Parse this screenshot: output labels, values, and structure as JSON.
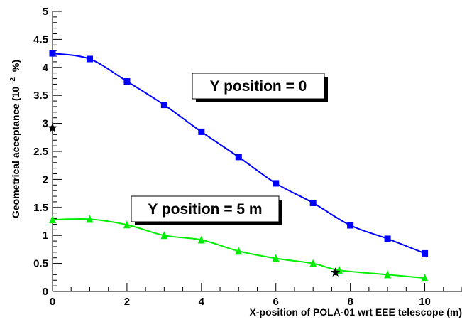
{
  "chart_data": {
    "type": "line",
    "title": "",
    "xlabel": "X-position of POLA-01 wrt EEE telescope (m)",
    "ylabel": "Geometrical acceptance (10",
    "ylabel_sup": "-2",
    "ylabel_unit": "%)",
    "xlim": [
      0,
      11
    ],
    "ylim": [
      0,
      5
    ],
    "xticks": [
      0,
      2,
      4,
      6,
      8,
      10
    ],
    "xtick_labels": [
      "0",
      "2",
      "4",
      "6",
      "8",
      "10"
    ],
    "yticks": [
      0,
      0.5,
      1,
      1.5,
      2,
      2.5,
      3,
      3.5,
      4,
      4.5,
      5
    ],
    "ytick_labels": [
      "0",
      "0.5",
      "1",
      "1.5",
      "2",
      "2.5",
      "3",
      "3.5",
      "4",
      "4.5",
      "5"
    ],
    "grid": false,
    "series": [
      {
        "marker": "square",
        "color": "#0000ff",
        "x": [
          0,
          1,
          2,
          3,
          4,
          5,
          6,
          7,
          8,
          9,
          10
        ],
        "values": [
          4.25,
          4.15,
          3.75,
          3.33,
          2.85,
          2.4,
          1.93,
          1.58,
          1.18,
          0.94,
          0.68
        ]
      },
      {
        "marker": "triangle",
        "color": "#00ee00",
        "x": [
          0,
          1,
          2,
          3,
          4,
          5,
          6,
          7,
          7.7,
          9,
          10
        ],
        "values": [
          1.28,
          1.29,
          1.19,
          1.0,
          0.92,
          0.72,
          0.59,
          0.5,
          0.38,
          0.3,
          0.24
        ]
      }
    ],
    "extra_points": [
      {
        "marker": "star",
        "color": "#000000",
        "x": 0,
        "y": 2.92,
        "yerr": 0.1
      },
      {
        "marker": "star",
        "color": "#000000",
        "x": 7.6,
        "y": 0.34,
        "yerr": 0.05
      }
    ],
    "annotations": [
      {
        "text": "Y position = 0"
      },
      {
        "text": "Y position = 5 m"
      }
    ]
  }
}
